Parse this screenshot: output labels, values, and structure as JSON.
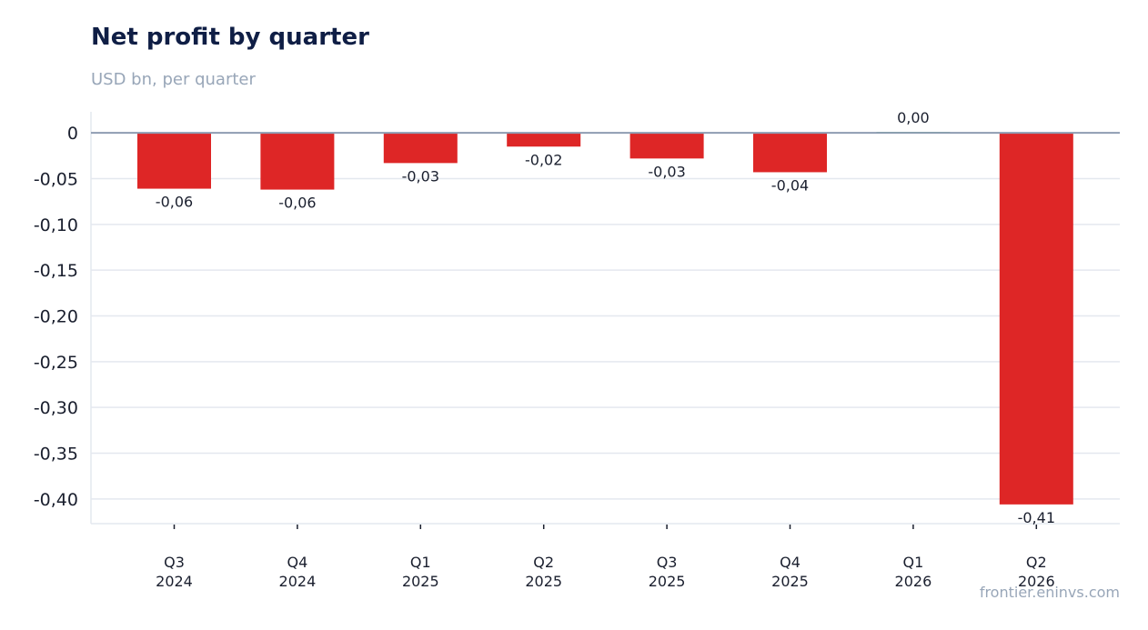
{
  "header": {
    "title": "Net profit by quarter",
    "subtitle": "USD bn, per quarter"
  },
  "footer": {
    "source": "frontier.eninvs.com"
  },
  "colors": {
    "negative": "#de2626",
    "positive": "#3fa66a",
    "zero_line": "#8e9db2",
    "grid": "#e4e8ef",
    "axis": "#e4e8ef",
    "text": "#1a1f2e"
  },
  "chart_data": {
    "type": "bar",
    "title": "Net profit by quarter",
    "subtitle": "USD bn, per quarter",
    "xlabel": "",
    "ylabel": "",
    "categories": [
      [
        "Q3",
        "2024"
      ],
      [
        "Q4",
        "2024"
      ],
      [
        "Q1",
        "2025"
      ],
      [
        "Q2",
        "2025"
      ],
      [
        "Q3",
        "2025"
      ],
      [
        "Q4",
        "2025"
      ],
      [
        "Q1",
        "2026"
      ],
      [
        "Q2",
        "2026"
      ]
    ],
    "values": [
      -0.061,
      -0.062,
      -0.033,
      -0.015,
      -0.028,
      -0.043,
      0.001,
      -0.406
    ],
    "value_labels": [
      "-0,06",
      "-0,06",
      "-0,03",
      "-0,02",
      "-0,03",
      "-0,04",
      "0,00",
      "-0,41"
    ],
    "yticks": [
      0,
      -0.05,
      -0.1,
      -0.15,
      -0.2,
      -0.25,
      -0.3,
      -0.35,
      -0.4
    ],
    "ytick_labels": [
      "0",
      "-0,05",
      "-0,10",
      "-0,15",
      "-0,20",
      "-0,25",
      "-0,30",
      "-0,35",
      "-0,40"
    ],
    "ylim": [
      -0.427,
      0.023
    ],
    "grid": "horizontal",
    "legend": "none"
  }
}
